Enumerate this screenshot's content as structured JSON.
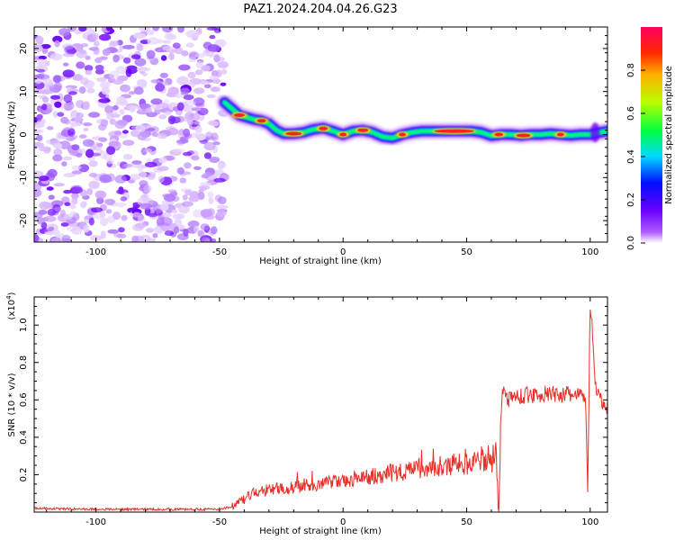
{
  "title": "PAZ1.2024.204.04.26.G23",
  "chart_data": [
    {
      "type": "heatmap",
      "xlabel": "Height of straight line (km)",
      "ylabel": "Frequency (Hz)",
      "xlim": [
        -125,
        107
      ],
      "ylim": [
        -25,
        25
      ],
      "xticks": [
        -100,
        -50,
        0,
        50,
        100
      ],
      "yticks": [
        -20,
        -10,
        0,
        10,
        20
      ],
      "noise_region_x": [
        -125,
        -48
      ],
      "ridge": {
        "x": [
          -48,
          -45,
          -42,
          -39,
          -36,
          -33,
          -30,
          -27,
          -24,
          -20,
          -16,
          -12,
          -8,
          -4,
          0,
          4,
          8,
          12,
          16,
          20,
          24,
          28,
          32,
          36,
          40,
          44,
          48,
          52,
          56,
          60,
          64,
          68,
          72,
          76,
          80,
          84,
          88,
          92,
          96,
          100,
          104,
          107
        ],
        "y": [
          7.5,
          6.0,
          4.5,
          4.0,
          3.5,
          3.2,
          2.5,
          1.0,
          0.2,
          0.2,
          0.5,
          1.2,
          1.5,
          0.8,
          0.0,
          0.8,
          1.0,
          0.5,
          -0.5,
          -0.8,
          0.0,
          0.5,
          0.8,
          0.8,
          0.8,
          0.8,
          0.8,
          0.8,
          0.5,
          -0.3,
          0.0,
          0.0,
          -0.2,
          0.0,
          0.0,
          0.2,
          0.0,
          -0.2,
          0.0,
          0.0,
          0.5,
          0.8
        ]
      },
      "colorbar": {
        "label": "Normalized spectral amplitude",
        "range": [
          0,
          1
        ],
        "ticks": [
          "0.0",
          "0.2",
          "0.4",
          "0.6",
          "0.8"
        ]
      }
    },
    {
      "type": "line",
      "xlabel": "Height of straight line (km)",
      "ylabel": "SNR (10 * v/v)",
      "y_multiplier": "(x10",
      "y_multiplier_exp": "4",
      "y_multiplier_close": ")",
      "xlim": [
        -125,
        107
      ],
      "ylim": [
        0,
        1.15
      ],
      "xticks": [
        -100,
        -50,
        0,
        50,
        100
      ],
      "yticks": [
        0.2,
        0.4,
        0.6,
        0.8,
        1.0
      ],
      "ytick_labels": [
        "0.2",
        "0.4",
        "0.6",
        "0.8",
        "1.0"
      ],
      "color": "#e8302b",
      "trend": {
        "x": [
          -125,
          -100,
          -75,
          -50,
          -45,
          -40,
          -35,
          -30,
          -20,
          -10,
          0,
          10,
          20,
          30,
          40,
          50,
          55,
          60,
          62,
          63,
          64,
          65,
          66,
          70,
          80,
          90,
          98,
          99,
          100,
          101,
          102,
          104,
          107
        ],
        "y": [
          0.02,
          0.015,
          0.015,
          0.015,
          0.03,
          0.07,
          0.11,
          0.12,
          0.13,
          0.15,
          0.16,
          0.19,
          0.21,
          0.23,
          0.25,
          0.26,
          0.27,
          0.3,
          0.35,
          0.01,
          0.55,
          0.7,
          0.6,
          0.62,
          0.63,
          0.63,
          0.62,
          0.12,
          1.12,
          0.95,
          0.66,
          0.6,
          0.55
        ]
      }
    }
  ]
}
